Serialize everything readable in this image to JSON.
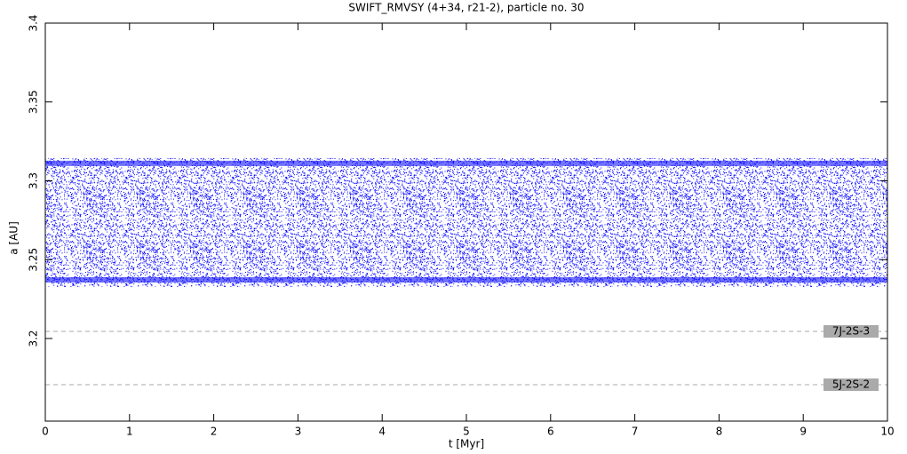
{
  "chart_data": {
    "type": "band",
    "title": "SWIFT_RMVSY (4+34, r21-2), particle no. 30",
    "x_label": "t [Myr]",
    "y_label": "a [AU]",
    "x": [
      0,
      10
    ],
    "lower": [
      3.2327,
      3.2327
    ],
    "upper": [
      3.3144,
      3.3144
    ],
    "color": "#0000ff",
    "xlim": [
      0,
      10
    ],
    "ylim": [
      3.1476,
      3.4
    ],
    "xticks": [
      0,
      1,
      2,
      3,
      4,
      5,
      6,
      7,
      8,
      9,
      10
    ],
    "yticks": [
      3.2,
      3.25,
      3.3,
      3.35,
      3.4
    ],
    "resonances": [
      {
        "label": "7J-2S-3",
        "value": 3.2045
      },
      {
        "label": "5J-2S-2",
        "value": 3.1707
      }
    ],
    "resonance_color": "#aaaaaa"
  }
}
